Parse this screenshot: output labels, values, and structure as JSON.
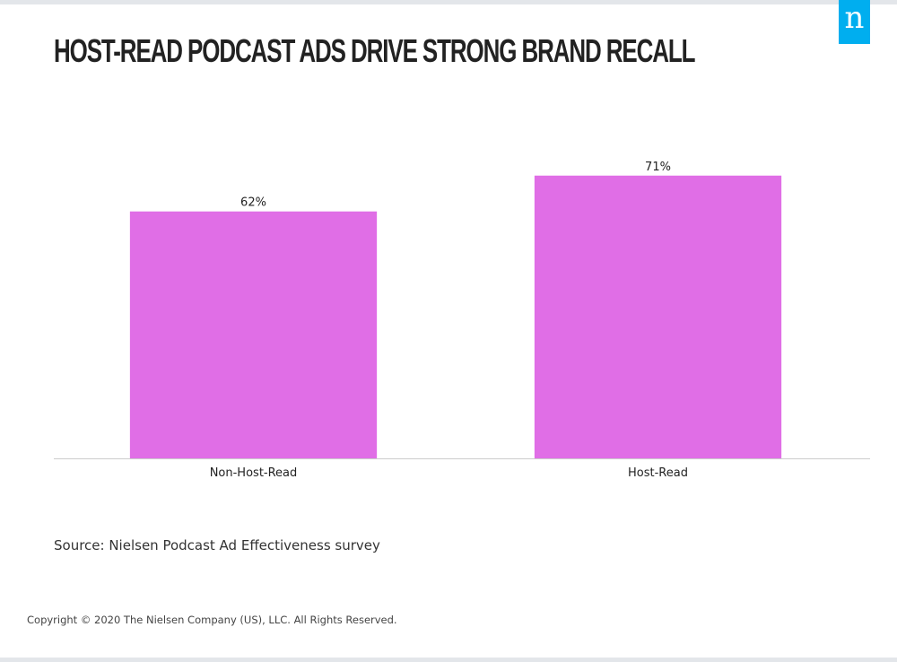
{
  "header": {
    "logo_letter": "n",
    "logo_color": "#00aeef"
  },
  "chart_data": {
    "type": "bar",
    "title": "HOST-READ PODCAST ADS DRIVE STRONG BRAND RECALL",
    "categories": [
      "Non-Host-Read",
      "Host-Read"
    ],
    "values": [
      62,
      71
    ],
    "data_labels": [
      "62%",
      "71%"
    ],
    "xlabel": "",
    "ylabel": "",
    "ylim": [
      0,
      100
    ],
    "grid": false,
    "bar_color": "#e06ee6",
    "axis_color": "#cccccc"
  },
  "footer": {
    "source": "Source: Nielsen Podcast Ad Effectiveness survey",
    "copyright": "Copyright © 2020 The Nielsen Company (US), LLC. All Rights Reserved."
  }
}
